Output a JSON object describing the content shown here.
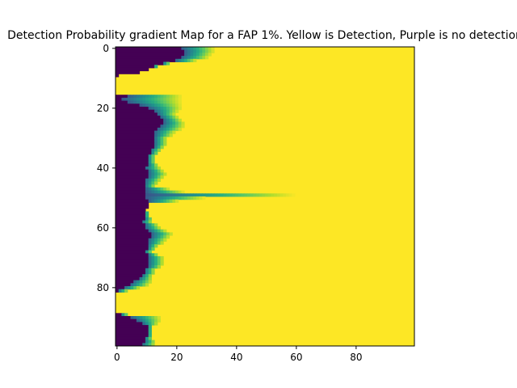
{
  "chart_data": {
    "type": "heatmap",
    "title": "Detection Probability gradient Map for a FAP 1%. Yellow is Detection, Purple is no detection",
    "xlabel": "",
    "ylabel": "",
    "xlim": [
      0,
      99
    ],
    "ylim": [
      99,
      0
    ],
    "grid": false,
    "colormap": "viridis",
    "colors": {
      "low": "#440154",
      "high": "#fde725"
    },
    "x_ticks": [
      "0",
      "20",
      "40",
      "60",
      "80"
    ],
    "y_ticks": [
      "0",
      "20",
      "40",
      "60",
      "80"
    ],
    "row_profile": [
      {
        "row": 0,
        "dark_until": 22,
        "gradient_until": 33
      },
      {
        "row": 1,
        "dark_until": 23,
        "gradient_until": 33
      },
      {
        "row": 2,
        "dark_until": 23,
        "gradient_until": 32
      },
      {
        "row": 3,
        "dark_until": 22,
        "gradient_until": 31
      },
      {
        "row": 4,
        "dark_until": 20,
        "gradient_until": 27
      },
      {
        "row": 5,
        "dark_until": 16,
        "gradient_until": 18
      },
      {
        "row": 6,
        "dark_until": 13,
        "gradient_until": 14
      },
      {
        "row": 7,
        "dark_until": 11,
        "gradient_until": 11
      },
      {
        "row": 8,
        "dark_until": 8,
        "gradient_until": 8
      },
      {
        "row": 9,
        "dark_until": 1,
        "gradient_until": 1
      },
      {
        "row": 10,
        "dark_until": 0,
        "gradient_until": 0
      },
      {
        "row": 15,
        "dark_until": 0,
        "gradient_until": 0
      },
      {
        "row": 16,
        "dark_until": 4,
        "gradient_until": 22
      },
      {
        "row": 17,
        "dark_until": 2,
        "gradient_until": 22
      },
      {
        "row": 18,
        "dark_until": 4,
        "gradient_until": 22
      },
      {
        "row": 19,
        "dark_until": 8,
        "gradient_until": 22
      },
      {
        "row": 20,
        "dark_until": 11,
        "gradient_until": 22
      },
      {
        "row": 22,
        "dark_until": 14,
        "gradient_until": 20
      },
      {
        "row": 24,
        "dark_until": 16,
        "gradient_until": 22
      },
      {
        "row": 26,
        "dark_until": 15,
        "gradient_until": 23
      },
      {
        "row": 28,
        "dark_until": 13,
        "gradient_until": 20
      },
      {
        "row": 30,
        "dark_until": 13,
        "gradient_until": 17
      },
      {
        "row": 32,
        "dark_until": 13,
        "gradient_until": 17
      },
      {
        "row": 34,
        "dark_until": 12,
        "gradient_until": 15
      },
      {
        "row": 36,
        "dark_until": 11,
        "gradient_until": 13
      },
      {
        "row": 38,
        "dark_until": 11,
        "gradient_until": 13
      },
      {
        "row": 40,
        "dark_until": 10,
        "gradient_until": 15
      },
      {
        "row": 42,
        "dark_until": 11,
        "gradient_until": 17
      },
      {
        "row": 44,
        "dark_until": 10,
        "gradient_until": 15
      },
      {
        "row": 46,
        "dark_until": 10,
        "gradient_until": 13
      },
      {
        "row": 48,
        "dark_until": 10,
        "gradient_until": 23
      },
      {
        "row": 49,
        "dark_until": 10,
        "gradient_until": 60
      },
      {
        "row": 50,
        "dark_until": 10,
        "gradient_until": 30
      },
      {
        "row": 52,
        "dark_until": 11,
        "gradient_until": 11
      },
      {
        "row": 54,
        "dark_until": 10,
        "gradient_until": 10
      },
      {
        "row": 56,
        "dark_until": 10,
        "gradient_until": 11
      },
      {
        "row": 58,
        "dark_until": 9,
        "gradient_until": 12
      },
      {
        "row": 60,
        "dark_until": 10,
        "gradient_until": 15
      },
      {
        "row": 62,
        "dark_until": 12,
        "gradient_until": 19
      },
      {
        "row": 64,
        "dark_until": 11,
        "gradient_until": 17
      },
      {
        "row": 66,
        "dark_until": 11,
        "gradient_until": 14
      },
      {
        "row": 68,
        "dark_until": 10,
        "gradient_until": 12
      },
      {
        "row": 70,
        "dark_until": 11,
        "gradient_until": 16
      },
      {
        "row": 72,
        "dark_until": 11,
        "gradient_until": 16
      },
      {
        "row": 74,
        "dark_until": 10,
        "gradient_until": 13
      },
      {
        "row": 76,
        "dark_until": 9,
        "gradient_until": 12
      },
      {
        "row": 78,
        "dark_until": 6,
        "gradient_until": 12
      },
      {
        "row": 79,
        "dark_until": 5,
        "gradient_until": 11
      },
      {
        "row": 80,
        "dark_until": 3,
        "gradient_until": 8
      },
      {
        "row": 81,
        "dark_until": 1,
        "gradient_until": 4
      },
      {
        "row": 82,
        "dark_until": 0,
        "gradient_until": 0
      },
      {
        "row": 88,
        "dark_until": 0,
        "gradient_until": 0
      },
      {
        "row": 89,
        "dark_until": 2,
        "gradient_until": 4
      },
      {
        "row": 90,
        "dark_until": 5,
        "gradient_until": 15
      },
      {
        "row": 91,
        "dark_until": 7,
        "gradient_until": 15
      },
      {
        "row": 93,
        "dark_until": 11,
        "gradient_until": 12
      },
      {
        "row": 95,
        "dark_until": 11,
        "gradient_until": 12
      },
      {
        "row": 97,
        "dark_until": 10,
        "gradient_until": 12
      },
      {
        "row": 99,
        "dark_until": 9,
        "gradient_until": 13
      }
    ]
  }
}
